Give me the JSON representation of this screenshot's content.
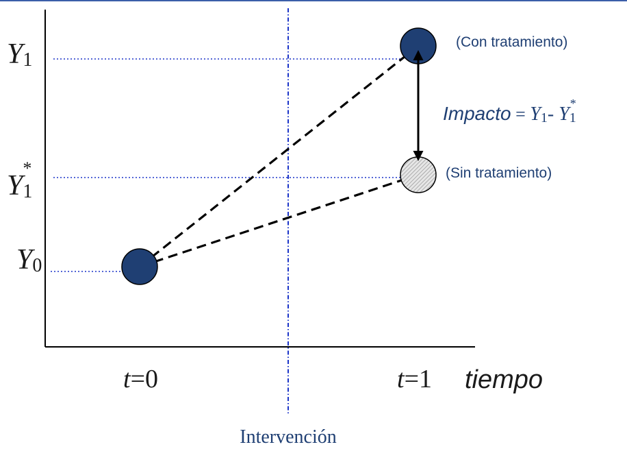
{
  "colors": {
    "top_border": "#3b5ea8",
    "guide_blue": "#1a33c8",
    "filled_circle": "#1f3f73",
    "circle_edge": "#000000",
    "text_blue": "#1f3f73",
    "text_black": "#1a1a1a"
  },
  "y_labels": {
    "y1_base": "Y",
    "y1_sub": "1",
    "y1s_base": "Y",
    "y1s_sub": "1",
    "y1s_sup": "*",
    "y0_base": "Y",
    "y0_sub": "0"
  },
  "x_labels": {
    "t0_var": "t",
    "t0_rest": "=0",
    "t1_var": "t",
    "t1_rest": "=1",
    "axis_name": "tiempo"
  },
  "points": {
    "with_treatment_label": "(Con tratamiento)",
    "without_treatment_label": "(Sin tratamiento)"
  },
  "impact": {
    "word": "Impacto",
    "eq": " = ",
    "a_base": "Y",
    "a_sub": "1",
    "dash": "- ",
    "b_base": "Y",
    "b_sub": "1",
    "b_sup": "*"
  },
  "intervention_label": "Intervención"
}
